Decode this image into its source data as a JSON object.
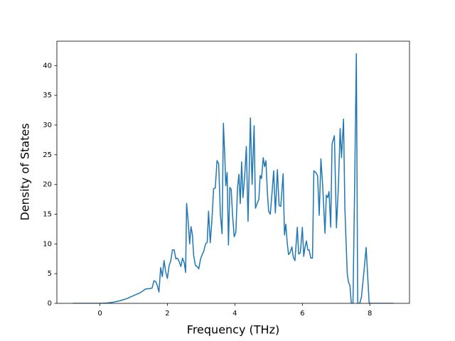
{
  "chart_data": {
    "type": "line",
    "x_label": "Frequency (THz)",
    "y_label": "Density of States",
    "color": "#1f77b4",
    "x": [
      -0.8,
      -0.4,
      0,
      0.2,
      0.4,
      0.6,
      0.8,
      1.0,
      1.2,
      1.35,
      1.5,
      1.55,
      1.6,
      1.65,
      1.7,
      1.75,
      1.8,
      1.85,
      1.9,
      1.95,
      2.0,
      2.05,
      2.1,
      2.15,
      2.2,
      2.25,
      2.3,
      2.35,
      2.4,
      2.45,
      2.5,
      2.54,
      2.57,
      2.62,
      2.66,
      2.7,
      2.74,
      2.78,
      2.83,
      2.88,
      2.93,
      2.98,
      3.03,
      3.08,
      3.13,
      3.18,
      3.22,
      3.27,
      3.32,
      3.37,
      3.42,
      3.47,
      3.52,
      3.57,
      3.62,
      3.66,
      3.7,
      3.73,
      3.77,
      3.81,
      3.85,
      3.89,
      3.93,
      3.98,
      4.03,
      4.08,
      4.12,
      4.16,
      4.2,
      4.24,
      4.29,
      4.34,
      4.39,
      4.46,
      4.51,
      4.57,
      4.61,
      4.66,
      4.71,
      4.75,
      4.79,
      4.84,
      4.88,
      4.92,
      4.96,
      5.0,
      5.05,
      5.1,
      5.15,
      5.2,
      5.26,
      5.31,
      5.36,
      5.43,
      5.47,
      5.51,
      5.55,
      5.59,
      5.64,
      5.69,
      5.73,
      5.78,
      5.85,
      5.89,
      5.94,
      6.0,
      6.04,
      6.08,
      6.12,
      6.16,
      6.2,
      6.25,
      6.3,
      6.34,
      6.4,
      6.45,
      6.5,
      6.55,
      6.6,
      6.67,
      6.71,
      6.75,
      6.79,
      6.84,
      6.88,
      6.95,
      7.01,
      7.07,
      7.12,
      7.16,
      7.22,
      7.26,
      7.33,
      7.37,
      7.41,
      7.45,
      7.5,
      7.55,
      7.6,
      7.64,
      7.7,
      7.75,
      7.82,
      7.89,
      7.98,
      8.2,
      8.7
    ],
    "values": [
      0,
      0,
      0,
      0.05,
      0.2,
      0.45,
      0.8,
      1.3,
      1.8,
      2.4,
      2.5,
      2.6,
      3.8,
      3.7,
      3.0,
      1.9,
      6.0,
      4.5,
      7.2,
      5.3,
      4.2,
      6.3,
      7.2,
      9.0,
      9.0,
      7.5,
      7.6,
      7.0,
      6.2,
      7.6,
      6.8,
      5.2,
      16.8,
      13.5,
      10.0,
      12.9,
      11.6,
      8.0,
      6.4,
      6.2,
      5.8,
      7.4,
      8.2,
      8.8,
      10.0,
      10.3,
      15.5,
      10.2,
      14.0,
      19.3,
      19.4,
      24.0,
      23.5,
      15.0,
      11.7,
      30.3,
      25.0,
      19.8,
      22.0,
      9.8,
      19.5,
      19.2,
      15.0,
      11.2,
      12.0,
      19.5,
      21.7,
      16.8,
      23.8,
      17.8,
      21.3,
      26.4,
      13.8,
      31.2,
      20.0,
      29.9,
      16.0,
      16.8,
      17.5,
      21.5,
      21.0,
      24.5,
      23.0,
      24.0,
      19.0,
      15.5,
      15.0,
      18.5,
      22.3,
      15.2,
      22.5,
      16.5,
      16.3,
      21.8,
      11.5,
      13.3,
      10.3,
      8.2,
      8.6,
      9.5,
      7.8,
      7.2,
      12.8,
      8.3,
      8.5,
      12.8,
      7.9,
      9.5,
      10.5,
      9.0,
      9.0,
      7.6,
      7.6,
      22.3,
      22.0,
      21.5,
      14.8,
      24.3,
      20.0,
      11.8,
      18.2,
      17.8,
      18.8,
      12.8,
      26.8,
      28.2,
      12.7,
      20.0,
      29.4,
      24.5,
      31.0,
      16.0,
      5.0,
      3.5,
      3.0,
      0,
      0,
      20.0,
      42.0,
      0,
      0,
      1.0,
      5.0,
      9.4,
      0,
      0,
      0
    ],
    "xlim": [
      -1.275,
      9.175
    ],
    "ylim": [
      0,
      44.1
    ],
    "xticks": [
      0,
      2,
      4,
      6,
      8
    ],
    "yticks": [
      0,
      5,
      10,
      15,
      20,
      25,
      30,
      35,
      40
    ]
  }
}
